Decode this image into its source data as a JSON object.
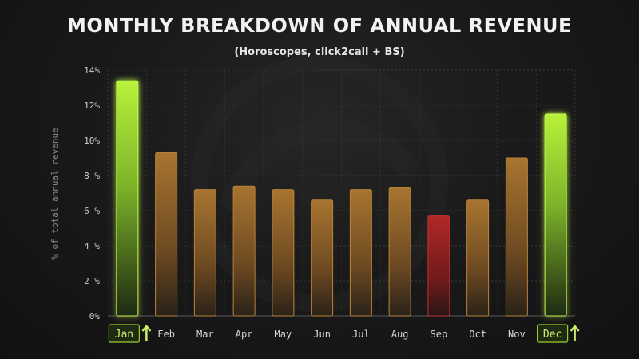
{
  "chart_data": {
    "type": "bar",
    "title": "MONTHLY BREAKDOWN OF ANNUAL REVENUE",
    "subtitle": "(Horoscopes, click2call + BS)",
    "xlabel": "",
    "ylabel": "% of total annual revenue",
    "ylim": [
      0,
      14
    ],
    "yticks": [
      {
        "value": 0,
        "label": "0%"
      },
      {
        "value": 2,
        "label": "2 %"
      },
      {
        "value": 4,
        "label": "4 %"
      },
      {
        "value": 6,
        "label": "6 %"
      },
      {
        "value": 8,
        "label": "8 %"
      },
      {
        "value": 10,
        "label": "10%"
      },
      {
        "value": 12,
        "label": "12%"
      },
      {
        "value": 14,
        "label": "14%"
      }
    ],
    "categories": [
      "Jan",
      "Feb",
      "Mar",
      "Apr",
      "May",
      "Jun",
      "Jul",
      "Aug",
      "Sep",
      "Oct",
      "Nov",
      "Dec"
    ],
    "values": [
      13.4,
      9.3,
      7.2,
      7.4,
      7.2,
      6.6,
      7.2,
      7.3,
      5.7,
      6.6,
      9.0,
      11.5
    ],
    "highlighted": [
      "Jan",
      "Dec"
    ],
    "lowest": [
      "Sep"
    ],
    "grid": true,
    "colors": {
      "normal": "#9c6a2a",
      "highlight": "#a4e02a",
      "lowest": "#9a2020",
      "highlight_label": "#c8f06a"
    }
  }
}
